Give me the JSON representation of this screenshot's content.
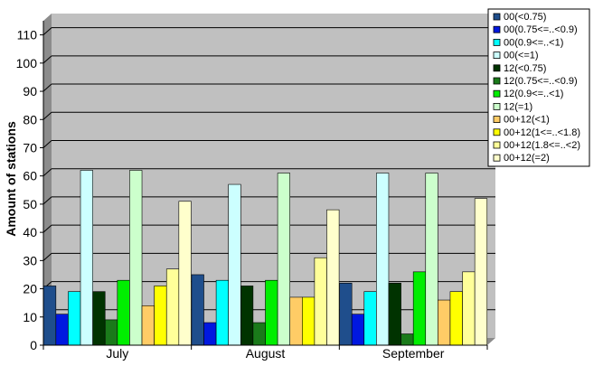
{
  "chart_data": {
    "type": "bar",
    "title": "",
    "xlabel": "",
    "ylabel": "Amount of stations",
    "ylim": [
      0,
      115
    ],
    "yticks": [
      0,
      10,
      20,
      30,
      40,
      50,
      60,
      70,
      80,
      90,
      100,
      110
    ],
    "grid": true,
    "legend_position": "top-right",
    "categories": [
      "July",
      "August",
      "September"
    ],
    "series": [
      {
        "name": "00(<0.75)",
        "color": "#1f4e8c",
        "values": [
          21,
          25,
          22
        ]
      },
      {
        "name": "00(0.75<=..<0.9)",
        "color": "#0018e0",
        "values": [
          11,
          8,
          11
        ]
      },
      {
        "name": "00(0.9<=..<1)",
        "color": "#00ffff",
        "values": [
          19,
          23,
          19
        ]
      },
      {
        "name": "00(<=1)",
        "color": "#ccffff",
        "values": [
          62,
          57,
          61
        ]
      },
      {
        "name": "12(<0.75)",
        "color": "#003300",
        "values": [
          19,
          21,
          22
        ]
      },
      {
        "name": "12(0.75<=..<0.9)",
        "color": "#1a7a1a",
        "values": [
          9,
          8,
          4
        ]
      },
      {
        "name": "12(0.9<=..<1)",
        "color": "#00ee00",
        "values": [
          23,
          23,
          26
        ]
      },
      {
        "name": "12(=1)",
        "color": "#ccffcc",
        "values": [
          62,
          61,
          61
        ]
      },
      {
        "name": "00+12(<1)",
        "color": "#ffcc66",
        "values": [
          14,
          17,
          16
        ]
      },
      {
        "name": "00+12(1<=..<1.8)",
        "color": "#ffff00",
        "values": [
          21,
          17,
          19
        ]
      },
      {
        "name": "00+12(1.8<=..<2)",
        "color": "#ffff99",
        "values": [
          27,
          31,
          26
        ]
      },
      {
        "name": "00+12(=2)",
        "color": "#ffffcc",
        "values": [
          51,
          48,
          52
        ]
      }
    ]
  }
}
